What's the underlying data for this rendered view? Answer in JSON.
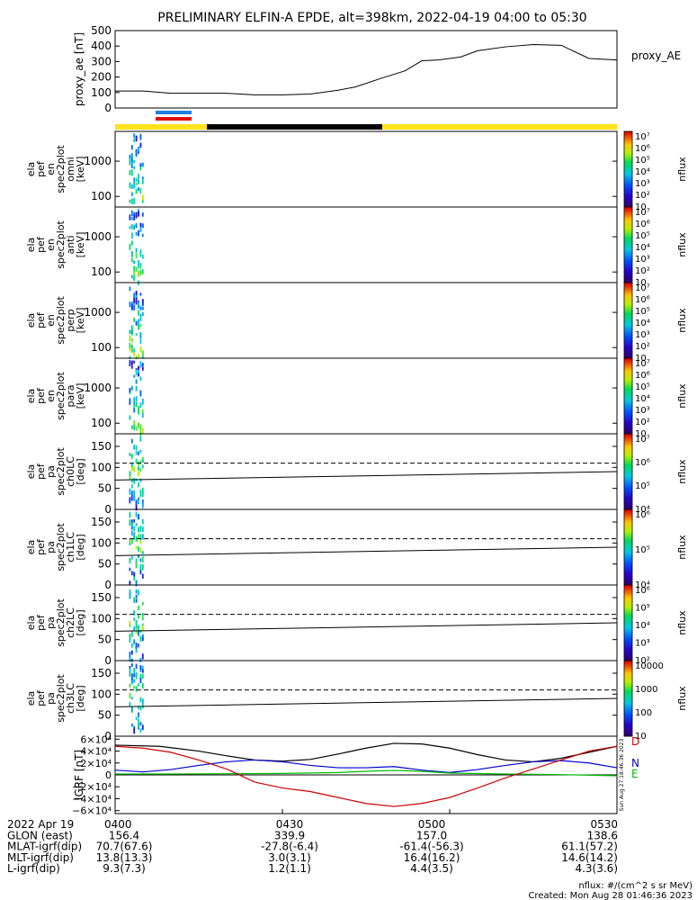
{
  "title": "PRELIMINARY ELFIN-A EPDE, alt=398km, 2022-04-19 04:00 to 05:30",
  "colors": {
    "ae_line": "#000000",
    "bar_blue": "#1f7fe0",
    "bar_red": "#e01010",
    "coverage_yellow": "#ffe21a",
    "coverage_black": "#000000",
    "grf_D": "#000000",
    "grf_N": "#0000cc",
    "grf_E": "#00bb00",
    "grf_red": "#cc0000"
  },
  "chart_data": [
    {
      "type": "line",
      "id": "proxy_ae",
      "ylabel": "proxy_ae [nT]",
      "legend": "proxy_AE",
      "ylim": [
        0,
        500
      ],
      "yticks": [
        "0",
        "100",
        "200",
        "300",
        "400",
        "500"
      ],
      "ytick_values": [
        0,
        100,
        200,
        300,
        400,
        500
      ],
      "xlim_min": [
        0,
        90
      ],
      "x": [
        0,
        5,
        10,
        15,
        20,
        25,
        30,
        35,
        40,
        43,
        48,
        52,
        55,
        58,
        62,
        65,
        70,
        75,
        80,
        85,
        90
      ],
      "y": [
        110,
        110,
        95,
        95,
        95,
        85,
        85,
        90,
        115,
        135,
        195,
        240,
        305,
        310,
        330,
        370,
        395,
        410,
        405,
        320,
        310
      ]
    },
    {
      "type": "heatmap",
      "id": "en_omni",
      "ylabel": [
        "ela",
        "pef",
        "en",
        "spec2plot",
        "omni",
        "[keV]"
      ],
      "yscale": "log",
      "ylim": [
        50,
        7000
      ],
      "yticks": [
        "100",
        "1000"
      ],
      "ytick_values": [
        100,
        1000
      ],
      "colorbar": {
        "label": "nflux",
        "scale": "log",
        "ticks": [
          "10",
          "10²",
          "10³",
          "10⁴",
          "10⁵",
          "10⁶",
          "10⁷"
        ]
      },
      "time_range_min": [
        2.5,
        5.0
      ]
    },
    {
      "type": "heatmap",
      "id": "en_anti",
      "ylabel": [
        "ela",
        "pef",
        "en",
        "spec2plot",
        "anti",
        "[keV]"
      ],
      "yscale": "log",
      "ylim": [
        50,
        7000
      ],
      "yticks": [
        "100",
        "1000"
      ],
      "ytick_values": [
        100,
        1000
      ],
      "colorbar": {
        "label": "nflux",
        "scale": "log",
        "ticks": [
          "10",
          "10²",
          "10³",
          "10⁴",
          "10⁵",
          "10⁶",
          "10⁷"
        ]
      },
      "time_range_min": [
        2.5,
        5.0
      ]
    },
    {
      "type": "heatmap",
      "id": "en_perp",
      "ylabel": [
        "ela",
        "pef",
        "en",
        "spec2plot",
        "perp",
        "[keV]"
      ],
      "yscale": "log",
      "ylim": [
        50,
        7000
      ],
      "yticks": [
        "100",
        "1000"
      ],
      "ytick_values": [
        100,
        1000
      ],
      "colorbar": {
        "label": "nflux",
        "scale": "log",
        "ticks": [
          "10",
          "10²",
          "10³",
          "10⁴",
          "10⁵",
          "10⁶",
          "10⁷"
        ]
      },
      "time_range_min": [
        2.5,
        5.0
      ]
    },
    {
      "type": "heatmap",
      "id": "en_para",
      "ylabel": [
        "ela",
        "pef",
        "en",
        "spec2plot",
        "para",
        "[keV]"
      ],
      "yscale": "log",
      "ylim": [
        50,
        7000
      ],
      "yticks": [
        "100",
        "1000"
      ],
      "ytick_values": [
        100,
        1000
      ],
      "colorbar": {
        "label": "nflux",
        "scale": "log",
        "ticks": [
          "10",
          "10²",
          "10³",
          "10⁴",
          "10⁵",
          "10⁶",
          "10⁷"
        ]
      },
      "time_range_min": [
        2.5,
        5.0
      ]
    },
    {
      "type": "heatmap",
      "id": "pa_ch0",
      "ylabel": [
        "ela",
        "pef",
        "pa",
        "spec2plot",
        "ch0LC",
        "[deg]"
      ],
      "ylim": [
        0,
        180
      ],
      "yticks": [
        "0",
        "50",
        "100",
        "150"
      ],
      "ytick_values": [
        0,
        50,
        100,
        150
      ],
      "dashed_line_deg": 110,
      "solid_line_deg": [
        70,
        90
      ],
      "colorbar": {
        "label": "nflux",
        "scale": "log",
        "ticks": [
          "10⁴",
          "10⁵",
          "10⁶",
          "10⁷"
        ]
      },
      "time_range_min": [
        2.5,
        5.0
      ]
    },
    {
      "type": "heatmap",
      "id": "pa_ch1",
      "ylabel": [
        "ela",
        "pef",
        "pa",
        "spec2plot",
        "ch1LC",
        "[deg]"
      ],
      "ylim": [
        0,
        180
      ],
      "yticks": [
        "0",
        "50",
        "100",
        "150"
      ],
      "ytick_values": [
        0,
        50,
        100,
        150
      ],
      "dashed_line_deg": 110,
      "solid_line_deg": [
        70,
        90
      ],
      "colorbar": {
        "label": "nflux",
        "scale": "log",
        "ticks": [
          "10⁴",
          "10⁵",
          "10⁶"
        ]
      },
      "time_range_min": [
        2.5,
        5.0
      ]
    },
    {
      "type": "heatmap",
      "id": "pa_ch2",
      "ylabel": [
        "ela",
        "pef",
        "pa",
        "spec2plot",
        "ch2LC",
        "[deg]"
      ],
      "ylim": [
        0,
        180
      ],
      "yticks": [
        "0",
        "50",
        "100",
        "150"
      ],
      "ytick_values": [
        0,
        50,
        100,
        150
      ],
      "dashed_line_deg": 110,
      "solid_line_deg": [
        70,
        90
      ],
      "colorbar": {
        "label": "nflux",
        "scale": "log",
        "ticks": [
          "10²",
          "10³",
          "10⁴",
          "10⁵",
          "10⁶"
        ]
      },
      "time_range_min": [
        2.5,
        5.0
      ]
    },
    {
      "type": "heatmap",
      "id": "pa_ch3",
      "ylabel": [
        "ela",
        "pef",
        "pa",
        "spec2plot",
        "ch3LC",
        "[deg]"
      ],
      "ylim": [
        0,
        180
      ],
      "yticks": [
        "0",
        "50",
        "100",
        "150"
      ],
      "ytick_values": [
        0,
        50,
        100,
        150
      ],
      "dashed_line_deg": 110,
      "solid_line_deg": [
        70,
        90
      ],
      "colorbar": {
        "label": "nflux",
        "scale": "linear",
        "ticks": [
          "10",
          "100",
          "1000",
          "10000"
        ]
      },
      "time_range_min": [
        2.5,
        5.0
      ]
    },
    {
      "type": "line",
      "id": "igrf",
      "ylabel": "IGRF [nT]",
      "ylim": [
        -65000,
        65000
      ],
      "yticks": [
        "6×10⁴",
        "4×10⁴",
        "2×10⁴",
        "0",
        "−2×10⁴",
        "−4×10⁴",
        "−6×10⁴"
      ],
      "ytick_values": [
        60000,
        40000,
        20000,
        0,
        -20000,
        -40000,
        -60000
      ],
      "series": [
        {
          "name": "D",
          "x": [
            0,
            8,
            15,
            20,
            25,
            30,
            35,
            40,
            45,
            50,
            55,
            60,
            65,
            70,
            75,
            80,
            85,
            90
          ],
          "y": [
            50000,
            48000,
            40000,
            32000,
            25000,
            23000,
            26000,
            35000,
            45000,
            53000,
            52000,
            45000,
            34000,
            25000,
            22000,
            28000,
            38000,
            48000
          ]
        },
        {
          "name": "N",
          "x": [
            0,
            5,
            10,
            15,
            20,
            25,
            30,
            35,
            40,
            45,
            50,
            55,
            60,
            65,
            70,
            75,
            80,
            85,
            90
          ],
          "y": [
            8000,
            5000,
            9000,
            16000,
            22000,
            25000,
            22000,
            16000,
            12000,
            12000,
            14000,
            8000,
            4000,
            9000,
            16000,
            22000,
            24000,
            20000,
            12000
          ]
        },
        {
          "name": "E",
          "x": [
            0,
            10,
            20,
            30,
            40,
            45,
            50,
            55,
            60,
            70,
            80,
            90
          ],
          "y": [
            1500,
            1500,
            2000,
            2500,
            4000,
            6000,
            7500,
            6000,
            3000,
            1500,
            500,
            -1500
          ]
        },
        {
          "name": "",
          "x": [
            0,
            5,
            10,
            15,
            20,
            25,
            30,
            35,
            40,
            45,
            50,
            55,
            60,
            65,
            70,
            75,
            80,
            85,
            90
          ],
          "y": [
            48000,
            45000,
            38000,
            25000,
            10000,
            -12000,
            -22000,
            -28000,
            -38000,
            -48000,
            -53000,
            -48000,
            -38000,
            -22000,
            -5000,
            10000,
            25000,
            40000,
            48000
          ]
        }
      ],
      "side_labels": [
        "D",
        "N",
        "E"
      ],
      "vertical_stamp": "Sun Aug 27 18:46:36 2023"
    }
  ],
  "footer": {
    "rows": [
      {
        "label": "2022 Apr 19",
        "values": [
          "0400",
          "0430",
          "0500",
          "0530"
        ]
      },
      {
        "label": "GLON (east)",
        "values": [
          "156.4",
          "339.9",
          "157.0",
          "138.6"
        ]
      },
      {
        "label": "MLAT-igrf(dip)",
        "values": [
          "70.7(67.6)",
          "-27.8(-6.4)",
          "-61.4(-56.3)",
          "61.1(57.2)"
        ]
      },
      {
        "label": "MLT-igrf(dip)",
        "values": [
          "13.8(13.3)",
          "3.0(3.1)",
          "16.4(16.2)",
          "14.6(14.2)"
        ]
      },
      {
        "label": "L-igrf(dip)",
        "values": [
          "9.3(7.3)",
          "1.2(1.1)",
          "4.4(3.5)",
          "4.3(3.6)"
        ]
      }
    ],
    "nflux_units": "nflux: #/(cm^2 s sr MeV)",
    "created": "Created: Mon Aug 28 01:46:36 2023"
  }
}
